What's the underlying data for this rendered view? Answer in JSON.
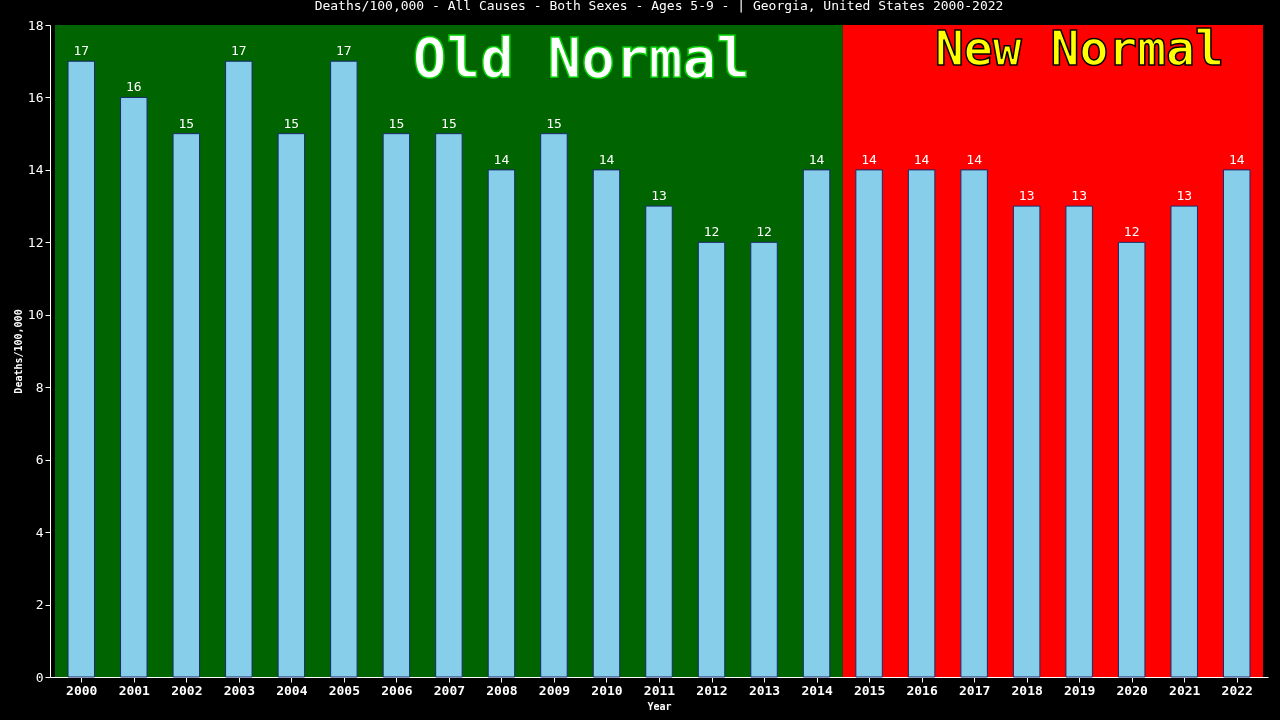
{
  "chart_data": {
    "type": "bar",
    "title": "Deaths/100,000 - All Causes - Both Sexes - Ages 5-9 -  | Georgia, United States 2000-2022",
    "xlabel": "Year",
    "ylabel": "Deaths/100,000",
    "categories": [
      "2000",
      "2001",
      "2002",
      "2003",
      "2004",
      "2005",
      "2006",
      "2007",
      "2008",
      "2009",
      "2010",
      "2011",
      "2012",
      "2013",
      "2014",
      "2015",
      "2016",
      "2017",
      "2018",
      "2019",
      "2020",
      "2021",
      "2022"
    ],
    "values": [
      17,
      16,
      15,
      17,
      15,
      17,
      15,
      15,
      14,
      15,
      14,
      13,
      12,
      12,
      14,
      14,
      14,
      14,
      13,
      13,
      12,
      13,
      14
    ],
    "color": "#87ceeb",
    "ylim": [
      0,
      18
    ],
    "yticks": [
      0,
      2,
      4,
      6,
      8,
      10,
      12,
      14,
      16,
      18
    ],
    "grid": false,
    "data_labels": true,
    "bands": [
      {
        "axis": "x",
        "from": "2000",
        "to": "2014",
        "label": "Old Normal",
        "color": "#006400"
      },
      {
        "axis": "x",
        "from": "2015",
        "to": "2022",
        "label": "New Normal",
        "color": "#ff0000"
      }
    ]
  }
}
